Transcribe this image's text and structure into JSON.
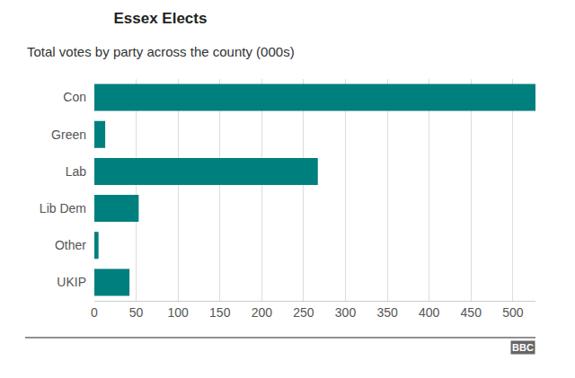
{
  "chart_data": {
    "type": "bar",
    "title": "Essex Elects",
    "subtitle": "Total votes by party across the county (000s)",
    "orientation": "horizontal",
    "categories": [
      "Con",
      "Green",
      "Lab",
      "Lib Dem",
      "Other",
      "UKIP"
    ],
    "values": [
      527,
      13,
      267,
      53,
      5,
      42
    ],
    "color": "#007f7f",
    "xlim": [
      0,
      527
    ],
    "xticks": [
      0,
      50,
      100,
      150,
      200,
      250,
      300,
      350,
      400,
      450,
      500
    ],
    "grid": true,
    "source": "BBC"
  }
}
